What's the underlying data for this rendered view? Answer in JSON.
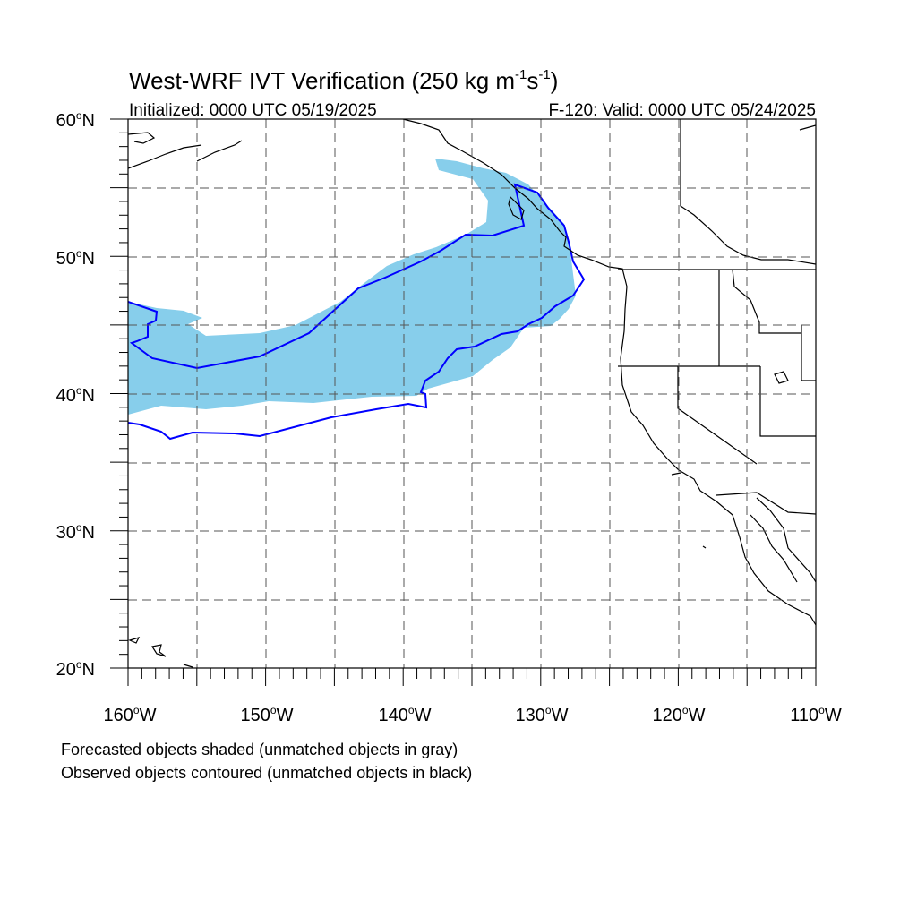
{
  "title": {
    "main": "West-WRF IVT Verification (250 kg m",
    "sup1": "-1",
    "mid": "s",
    "sup2": "-1",
    "close": ")"
  },
  "subtitle_left": "Initialized: 0000 UTC 05/19/2025",
  "subtitle_right": "F-120: Valid: 0000 UTC 05/24/2025",
  "lat_labels": [
    {
      "deg": "60",
      "unit": "o",
      "hem": "N"
    },
    {
      "deg": "50",
      "unit": "o",
      "hem": "N"
    },
    {
      "deg": "40",
      "unit": "o",
      "hem": "N"
    },
    {
      "deg": "30",
      "unit": "o",
      "hem": "N"
    },
    {
      "deg": "20",
      "unit": "o",
      "hem": "N"
    }
  ],
  "lon_labels": [
    {
      "deg": "160",
      "unit": "o",
      "hem": "W"
    },
    {
      "deg": "150",
      "unit": "o",
      "hem": "W"
    },
    {
      "deg": "140",
      "unit": "o",
      "hem": "W"
    },
    {
      "deg": "130",
      "unit": "o",
      "hem": "W"
    },
    {
      "deg": "120",
      "unit": "o",
      "hem": "W"
    },
    {
      "deg": "110",
      "unit": "o",
      "hem": "W"
    }
  ],
  "footnotes": [
    "Forecasted objects shaded (unmatched objects in gray)",
    "Observed objects contoured (unmatched objects in black)"
  ],
  "map": {
    "lon_range": [
      -160,
      -110
    ],
    "lat_range": [
      20,
      60
    ],
    "grid_spacing_deg": 5,
    "gridlines": "dashed",
    "colors": {
      "forecast_fill": "#87ceeb",
      "observed_contour": "#0000ff",
      "coastline": "#000000"
    }
  }
}
